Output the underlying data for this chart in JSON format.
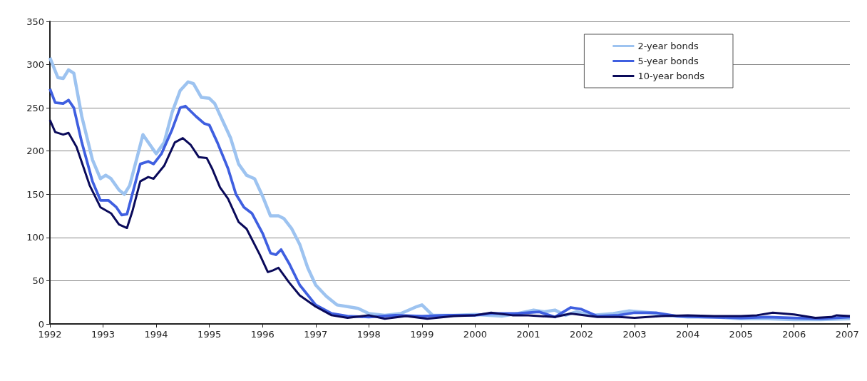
{
  "chart_data": {
    "type": "line",
    "xlim": [
      1992,
      2007.05
    ],
    "xticks": [
      1992,
      1993,
      1994,
      1995,
      1996,
      1997,
      1998,
      1999,
      2000,
      2001,
      2002,
      2003,
      2004,
      2005,
      2006,
      2007
    ],
    "ylim": [
      0,
      350
    ],
    "yticks": [
      0,
      50,
      100,
      150,
      200,
      250,
      300,
      350
    ],
    "grid": "y",
    "legend": "top right",
    "marker": "none",
    "line_style": "solid",
    "series": [
      {
        "name": "2-year bonds",
        "color": "#9dc3f0",
        "x": [
          1992,
          1992.15,
          1992.25,
          1992.35,
          1992.45,
          1992.6,
          1992.8,
          1992.95,
          1993.05,
          1993.15,
          1993.3,
          1993.4,
          1993.5,
          1993.65,
          1993.75,
          1993.85,
          1994,
          1994.15,
          1994.3,
          1994.45,
          1994.6,
          1994.7,
          1994.85,
          1995,
          1995.1,
          1995.25,
          1995.4,
          1995.55,
          1995.7,
          1995.85,
          1996,
          1996.15,
          1996.3,
          1996.4,
          1996.55,
          1996.7,
          1996.85,
          1997,
          1997.2,
          1997.4,
          1997.6,
          1997.8,
          1998,
          1998.3,
          1998.6,
          1998.9,
          1999,
          1999.2,
          1999.6,
          2000,
          2000.5,
          2000.8,
          2001.1,
          2001.3,
          2001.5,
          2001.7,
          2001.9,
          2002.2,
          2002.6,
          2002.9,
          2003.3,
          2003.6,
          2004,
          2004.5,
          2005,
          2005.5,
          2006,
          2006.5,
          2007.05
        ],
        "values": [
          308,
          285,
          284,
          294,
          290,
          240,
          190,
          168,
          172,
          168,
          155,
          150,
          160,
          195,
          219,
          210,
          197,
          210,
          245,
          270,
          280,
          278,
          262,
          261,
          255,
          235,
          215,
          185,
          172,
          168,
          148,
          125,
          125,
          122,
          110,
          92,
          65,
          45,
          32,
          22,
          20,
          18,
          12,
          10,
          12,
          20,
          22,
          10,
          10,
          11,
          9,
          12,
          16,
          14,
          16,
          10,
          14,
          10,
          12,
          15,
          13,
          10,
          8,
          8,
          6,
          6,
          5,
          5,
          6
        ]
      },
      {
        "name": "5-year bonds",
        "color": "#3f5fe0",
        "x": [
          1992,
          1992.1,
          1992.25,
          1992.35,
          1992.45,
          1992.6,
          1992.8,
          1992.95,
          1993.1,
          1993.25,
          1993.35,
          1993.45,
          1993.55,
          1993.7,
          1993.85,
          1993.95,
          1994.1,
          1994.3,
          1994.45,
          1994.55,
          1994.75,
          1994.9,
          1995,
          1995.15,
          1995.35,
          1995.5,
          1995.65,
          1995.8,
          1996,
          1996.15,
          1996.25,
          1996.35,
          1996.5,
          1996.7,
          1997,
          1997.3,
          1997.6,
          1998,
          1998.5,
          1999,
          1999.5,
          2000,
          2000.3,
          2000.8,
          2001.2,
          2001.5,
          2001.8,
          2002,
          2002.3,
          2002.7,
          2003,
          2003.4,
          2003.8,
          2004.3,
          2005,
          2005.5,
          2006,
          2006.5,
          2007.05
        ],
        "values": [
          272,
          256,
          255,
          259,
          250,
          210,
          165,
          143,
          143,
          135,
          126,
          127,
          150,
          185,
          188,
          185,
          197,
          225,
          250,
          252,
          240,
          232,
          230,
          210,
          180,
          150,
          135,
          128,
          105,
          82,
          80,
          86,
          70,
          45,
          22,
          12,
          9,
          8,
          10,
          9,
          10,
          10,
          12,
          12,
          14,
          8,
          19,
          17,
          9,
          10,
          13,
          13,
          9,
          8,
          7,
          8,
          7,
          6,
          8
        ]
      },
      {
        "name": "10-year bonds",
        "color": "#0a0a5a",
        "x": [
          1992,
          1992.1,
          1992.25,
          1992.35,
          1992.5,
          1992.75,
          1992.95,
          1993.15,
          1993.3,
          1993.45,
          1993.55,
          1993.7,
          1993.85,
          1993.95,
          1994.15,
          1994.35,
          1994.5,
          1994.65,
          1994.8,
          1994.95,
          1995.05,
          1995.2,
          1995.35,
          1995.55,
          1995.7,
          1995.95,
          1996.1,
          1996.2,
          1996.3,
          1996.5,
          1996.7,
          1997,
          1997.3,
          1997.6,
          1998,
          1998.3,
          1998.7,
          1999.1,
          1999.6,
          2000,
          2000.3,
          2000.7,
          2001,
          2001.5,
          2001.8,
          2002.3,
          2002.7,
          2003,
          2003.5,
          2004,
          2004.5,
          2005,
          2005.3,
          2005.6,
          2006,
          2006.4,
          2006.7,
          2006.8,
          2007.05
        ],
        "values": [
          236,
          222,
          219,
          221,
          205,
          160,
          135,
          128,
          115,
          111,
          130,
          165,
          170,
          168,
          183,
          210,
          215,
          207,
          193,
          192,
          180,
          158,
          145,
          118,
          110,
          80,
          60,
          62,
          65,
          48,
          33,
          20,
          10,
          7,
          10,
          6,
          9,
          6,
          9,
          10,
          13,
          10,
          10,
          8,
          12,
          8,
          8,
          7,
          9,
          10,
          9,
          9,
          10,
          13,
          11,
          7,
          8,
          10,
          9
        ]
      }
    ]
  }
}
